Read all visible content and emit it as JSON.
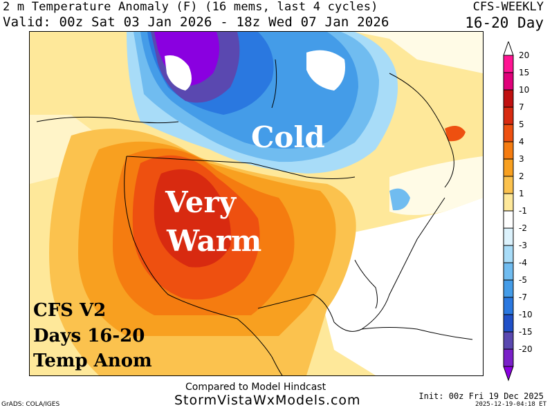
{
  "header": {
    "title_line1": "2 m Temperature Anomaly (F) (16 mems, last 4 cycles)",
    "title_line2": "Valid: 00z Sat 03 Jan 2026 - 18z Wed 07 Jan 2026",
    "product": "CFS-WEEKLY",
    "period": "16-20 Day"
  },
  "map": {
    "annotations": {
      "cold": "Cold",
      "very": "Very",
      "warm": "Warm"
    },
    "corner_text": [
      "CFS V2",
      "Days 16-20",
      "Temp Anom"
    ]
  },
  "colorbar": {
    "levels": [
      {
        "label": "20",
        "color": "#ff1493"
      },
      {
        "label": "15",
        "color": "#e0007a"
      },
      {
        "label": "10",
        "color": "#c01010"
      },
      {
        "label": "7",
        "color": "#d82a10"
      },
      {
        "label": "5",
        "color": "#ee5010"
      },
      {
        "label": "4",
        "color": "#f57c10"
      },
      {
        "label": "3",
        "color": "#f8a020"
      },
      {
        "label": "2",
        "color": "#fbc24e"
      },
      {
        "label": "1",
        "color": "#fee89a"
      },
      {
        "label": "-1",
        "color": "#ffffff"
      },
      {
        "label": "-2",
        "color": "#dcf2fc"
      },
      {
        "label": "-3",
        "color": "#a8dcf8"
      },
      {
        "label": "-4",
        "color": "#70bcf0"
      },
      {
        "label": "-5",
        "color": "#449ce8"
      },
      {
        "label": "-7",
        "color": "#2a78e0"
      },
      {
        "label": "-10",
        "color": "#2050c8"
      },
      {
        "label": "-15",
        "color": "#5a48b0"
      },
      {
        "label": "-20",
        "color": "#7a20c8"
      }
    ],
    "bottom_color": "#8a00e0"
  },
  "footer": {
    "compared": "Compared to Model Hindcast",
    "site": "StormVistaWxModels.com",
    "grads": "GrADS: COLA/IGES",
    "init": "Init: 00z Fri 19 Dec 2025",
    "stamp": "2025-12-19-04:18 ET"
  }
}
